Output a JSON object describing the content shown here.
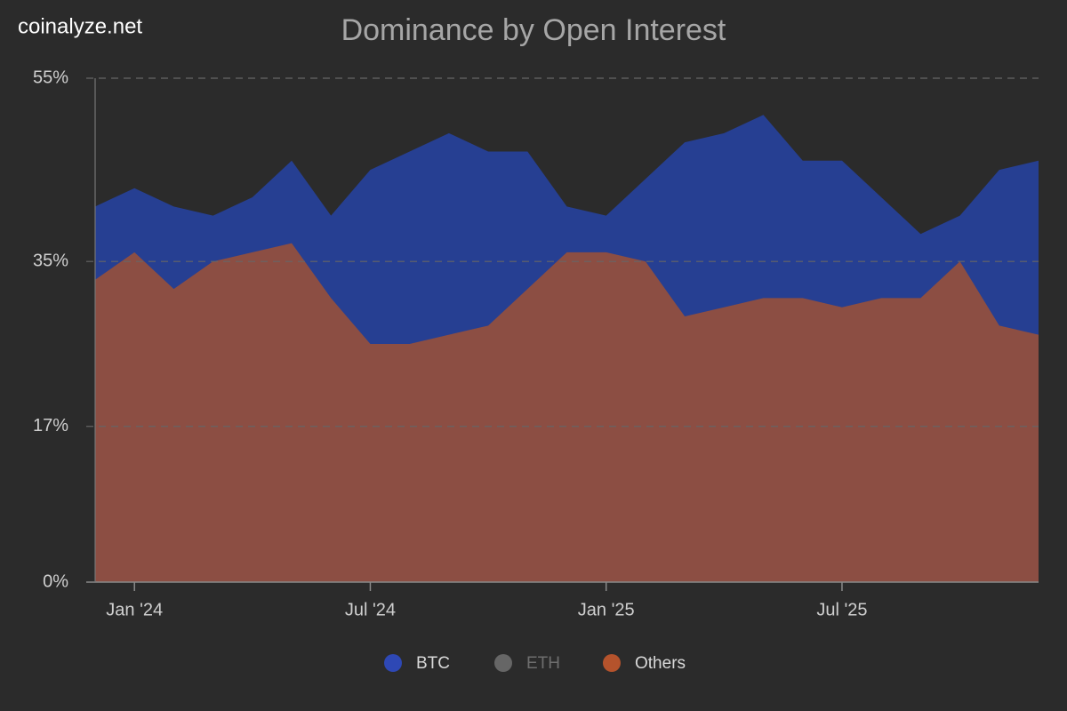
{
  "site": "coinalyze.net",
  "chart_data": {
    "type": "area",
    "title": "Dominance by Open Interest",
    "x": [
      "2023-12",
      "2024-01",
      "2024-02",
      "2024-03",
      "2024-04",
      "2024-05",
      "2024-06",
      "2024-07",
      "2024-08",
      "2024-09",
      "2024-10",
      "2024-11",
      "2024-12",
      "2025-01",
      "2025-02",
      "2025-03",
      "2025-04",
      "2025-05",
      "2025-06",
      "2025-07",
      "2025-08",
      "2025-09",
      "2025-10",
      "2025-11",
      "2025-12"
    ],
    "series": [
      {
        "name": "BTC",
        "color": "#263f92",
        "legend_color": "#2e48b5",
        "values": [
          41,
          43,
          41,
          40,
          42,
          46,
          40,
          45,
          47,
          49,
          47,
          47,
          41,
          40,
          44,
          48,
          49,
          51,
          46,
          46,
          42,
          38,
          40,
          45,
          46
        ]
      },
      {
        "name": "ETH",
        "color": "#666666",
        "legend_color": "#666666",
        "visible": false
      },
      {
        "name": "Others",
        "color": "#8c4e43",
        "legend_color": "#b5532c",
        "values": [
          33,
          36,
          32,
          35,
          36,
          37,
          31,
          26,
          26,
          27,
          28,
          32,
          36,
          36,
          35,
          29,
          30,
          31,
          31,
          30,
          31,
          31,
          35,
          28,
          27
        ]
      }
    ],
    "xlim": [
      "2023-12",
      "2025-12"
    ],
    "xticks": [
      {
        "value": "2024-01",
        "label": "Jan '24"
      },
      {
        "value": "2024-07",
        "label": "Jul '24"
      },
      {
        "value": "2025-01",
        "label": "Jan '25"
      },
      {
        "value": "2025-07",
        "label": "Jul '25"
      }
    ],
    "ylim": [
      0,
      55
    ],
    "yticks": [
      {
        "value": 0,
        "label": "0%"
      },
      {
        "value": 17,
        "label": "17%"
      },
      {
        "value": 35,
        "label": "35%"
      },
      {
        "value": 55,
        "label": "55%"
      }
    ],
    "grid": true
  }
}
